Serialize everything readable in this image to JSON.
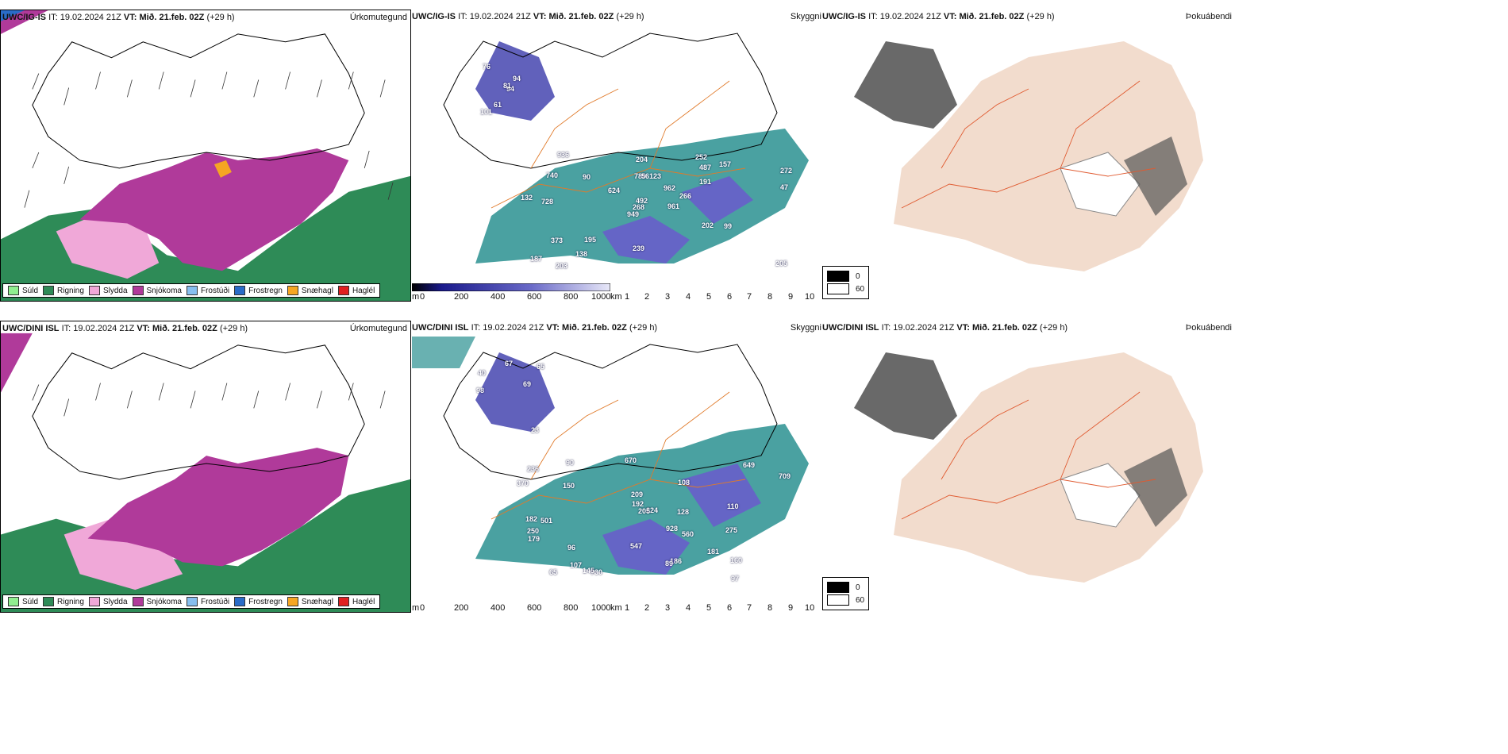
{
  "rows": [
    {
      "model": "UWC/IG-IS",
      "it_label": "IT:",
      "it_time": "19.02.2024 21Z",
      "vt_label": "VT:",
      "vt_time": "Mið. 21.feb. 02Z",
      "lead": "(+29 h)",
      "precip_title": "Úrkomutegund",
      "vis_title": "Skyggni",
      "fog_title": "Þokuábendi",
      "height_labels": [
        "94",
        "76",
        "81",
        "101",
        "94",
        "61",
        "252",
        "123",
        "487",
        "961",
        "936",
        "205",
        "728",
        "272",
        "949",
        "191",
        "203",
        "780",
        "962",
        "373",
        "624",
        "187",
        "138",
        "56",
        "266",
        "99",
        "740",
        "204",
        "132",
        "202",
        "47",
        "268",
        "239",
        "492",
        "90",
        "157",
        "195"
      ]
    },
    {
      "model": "UWC/DINI ISL",
      "it_label": "IT:",
      "it_time": "19.02.2024 21Z",
      "vt_label": "VT:",
      "vt_time": "Mið. 21.feb. 02Z",
      "lead": "(+29 h)",
      "precip_title": "Úrkomutegund",
      "vis_title": "Skyggni",
      "fog_title": "Þokuábendi",
      "height_labels": [
        "98",
        "67",
        "69",
        "65",
        "40",
        "23",
        "501",
        "108",
        "209",
        "649",
        "224",
        "275",
        "670",
        "370",
        "150",
        "96",
        "186",
        "182",
        "928",
        "547",
        "181",
        "160",
        "709",
        "192",
        "107",
        "205",
        "560",
        "90",
        "730",
        "89",
        "250",
        "97",
        "128",
        "65",
        "145",
        "179",
        "110",
        "236"
      ]
    }
  ],
  "precip_legend": [
    {
      "label": "Súld",
      "color": "#90ee90"
    },
    {
      "label": "Rigning",
      "color": "#2e8b57"
    },
    {
      "label": "Slydda",
      "color": "#f0a8d8"
    },
    {
      "label": "Snjókoma",
      "color": "#b03a9a"
    },
    {
      "label": "Frostúði",
      "color": "#87bfef"
    },
    {
      "label": "Frostregn",
      "color": "#2a6cc8"
    },
    {
      "label": "Snæhagl",
      "color": "#f5a623"
    },
    {
      "label": "Haglél",
      "color": "#e02020"
    }
  ],
  "height_bar": {
    "unit": "m",
    "ticks": [
      "0",
      "200",
      "400",
      "600",
      "800",
      "1000"
    ]
  },
  "vis_bar": {
    "unit": "km",
    "ticks": [
      "1",
      "2",
      "3",
      "4",
      "5",
      "6",
      "7",
      "8",
      "9",
      "10"
    ]
  },
  "fog_legend": [
    {
      "label": "0",
      "color": "#000000"
    },
    {
      "label": "60",
      "color": "#ffffff"
    }
  ],
  "colors": {
    "snow": "#b03a9a",
    "rain": "#2e8b57",
    "sleet": "#f0a8d8",
    "teal": "#2a9090",
    "roads": "#e07a2a",
    "fogland": "#f2dccd"
  }
}
